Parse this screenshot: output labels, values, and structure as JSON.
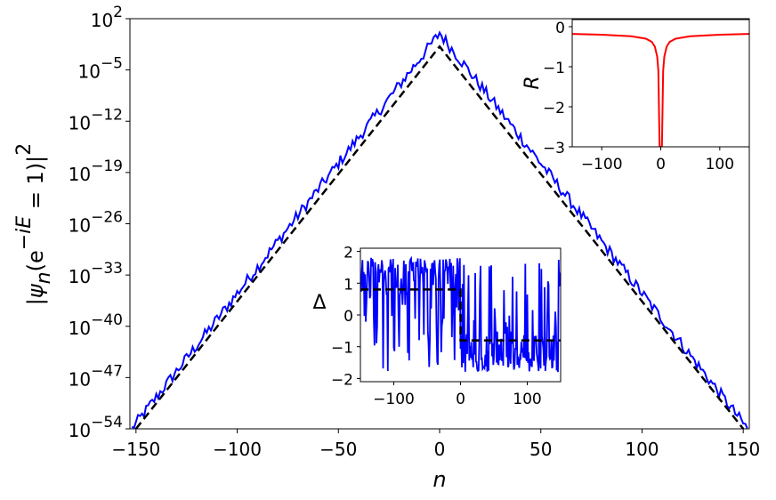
{
  "chart_data": [
    {
      "type": "line",
      "panel": "main",
      "xlabel": "n",
      "ylabel": "|ψn(e^-iE = 1)|^2",
      "yscale": "log",
      "xlim": [
        -153,
        153
      ],
      "ylim_exponent": [
        -54,
        2
      ],
      "xticks": [
        "−150",
        "−100",
        "−50",
        "0",
        "50",
        "100",
        "150"
      ],
      "yticks": [
        {
          "base": "10",
          "exp": "2"
        },
        {
          "base": "10",
          "exp": "−5"
        },
        {
          "base": "10",
          "exp": "−12"
        },
        {
          "base": "10",
          "exp": "−19"
        },
        {
          "base": "10",
          "exp": "−26"
        },
        {
          "base": "10",
          "exp": "−33"
        },
        {
          "base": "10",
          "exp": "−40"
        },
        {
          "base": "10",
          "exp": "−47"
        },
        {
          "base": "10",
          "exp": "−54"
        }
      ],
      "series": [
        {
          "color": "#0000ff",
          "style": "solid",
          "description_values": "log10|psi|^2 peak ~0 at n=0, decay ~0.36 decades per site with fluctuations"
        },
        {
          "color": "#000000",
          "style": "dashed",
          "x": [
            -150,
            0,
            150
          ],
          "y_log10": [
            -54,
            -1.8,
            -54
          ]
        }
      ],
      "grid": false
    },
    {
      "type": "line",
      "panel": "inset-top-right",
      "ylabel": "R",
      "xlim": [
        -150,
        150
      ],
      "ylim": [
        -3,
        0.2
      ],
      "xticks": [
        "−100",
        "0",
        "100"
      ],
      "yticks": [
        "0",
        "−1",
        "−2",
        "−3"
      ],
      "series": [
        {
          "color": "#ff0000",
          "style": "solid",
          "x": [
            -150,
            -100,
            -50,
            -25,
            -15,
            -10,
            -6,
            -4,
            -2,
            0,
            2,
            4,
            6,
            10,
            15,
            25,
            50,
            100,
            150
          ],
          "y": [
            -0.18,
            -0.2,
            -0.24,
            -0.3,
            -0.38,
            -0.5,
            -0.75,
            -1.1,
            -3.0,
            -3.0,
            -3.0,
            -1.1,
            -0.75,
            -0.5,
            -0.38,
            -0.3,
            -0.24,
            -0.2,
            -0.18
          ]
        }
      ]
    },
    {
      "type": "line",
      "panel": "inset-middle",
      "ylabel": "Δ",
      "xlim": [
        -150,
        150
      ],
      "ylim": [
        -2.1,
        2.1
      ],
      "xticks": [
        "−100",
        "0",
        "100"
      ],
      "yticks": [
        "2",
        "1",
        "0",
        "−1",
        "−2"
      ],
      "series": [
        {
          "color": "#0000ff",
          "style": "solid",
          "description_values": "random fluctuating values in [-1.8, 1.8]; mean ~0.8 for n<0, ~-0.8 for n>0"
        },
        {
          "color": "#000000",
          "style": "dashed",
          "x": [
            -150,
            0,
            0,
            150
          ],
          "y": [
            0.8,
            0.8,
            -0.8,
            -0.8
          ]
        }
      ]
    }
  ]
}
